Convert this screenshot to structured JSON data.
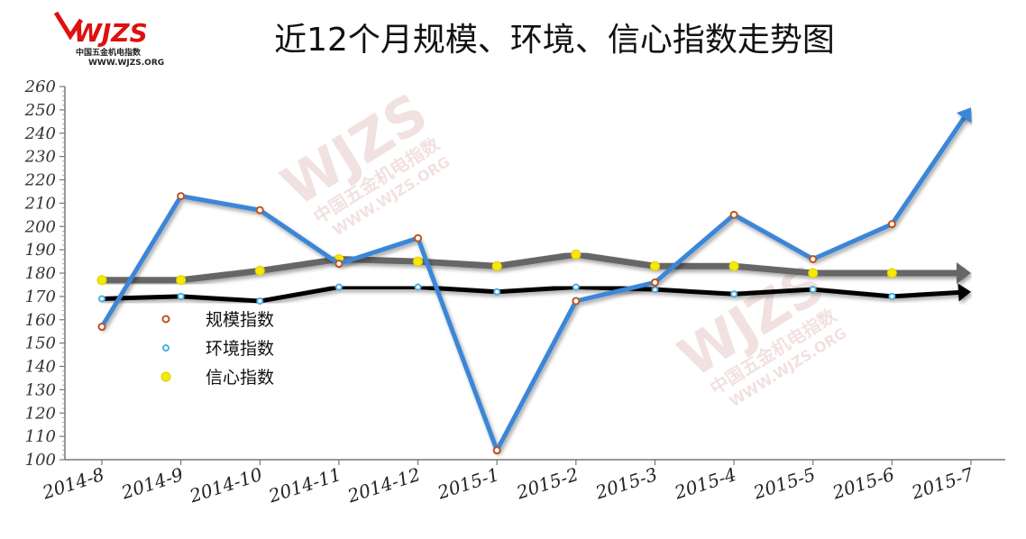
{
  "logo": {
    "mark": "WJZS",
    "name": "中国五金机电指数",
    "url": "WWW.WJZS.ORG"
  },
  "watermark": {
    "mark": "WJZS",
    "name": "中国五金机电指数",
    "url": "WWW.WJZS.ORG"
  },
  "colors": {
    "scale": "#3a86d8",
    "environment": "#000000",
    "confidence": "#666666",
    "scale_marker": "#c0521e",
    "environment_marker": "#4ab0e0",
    "confidence_marker": "#f5ea00"
  },
  "chart_data": {
    "type": "line",
    "title": "近12个月规模、环境、信心指数走势图",
    "xlabel": "",
    "ylabel": "",
    "categories": [
      "2014-8",
      "2014-9",
      "2014-10",
      "2014-11",
      "2014-12",
      "2015-1",
      "2015-2",
      "2015-3",
      "2015-4",
      "2015-5",
      "2015-6",
      "2015-7"
    ],
    "ylim": [
      100,
      260
    ],
    "yticks": [
      100,
      110,
      120,
      130,
      140,
      150,
      160,
      170,
      180,
      190,
      200,
      210,
      220,
      230,
      240,
      250,
      260
    ],
    "grid": false,
    "legend_position": "left-center",
    "series": [
      {
        "name": "规模指数",
        "values": [
          157,
          213,
          207,
          184,
          195,
          104,
          168,
          176,
          205,
          186,
          201,
          251
        ]
      },
      {
        "name": "环境指数",
        "values": [
          169,
          170,
          168,
          174,
          174,
          172,
          174,
          173,
          171,
          173,
          170,
          172
        ]
      },
      {
        "name": "信心指数",
        "values": [
          177,
          177,
          181,
          186,
          185,
          183,
          188,
          183,
          183,
          180,
          180,
          180
        ]
      }
    ]
  }
}
